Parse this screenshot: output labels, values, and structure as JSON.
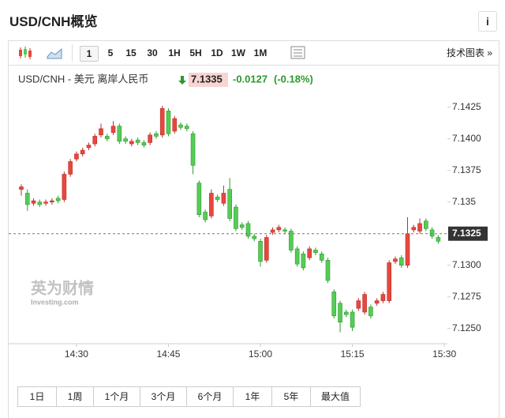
{
  "header": {
    "title": "USD/CNH概览",
    "info": "i"
  },
  "toolbar": {
    "intervals": [
      "1",
      "5",
      "15",
      "30",
      "1H",
      "5H",
      "1D",
      "1W",
      "1M"
    ],
    "selected": "1",
    "tech_chart": "技术图表 »"
  },
  "quote": {
    "name": "USD/CNH - 美元 离岸人民币",
    "price": "7.1335",
    "change": "-0.0127",
    "change_pct": "(-0.18%)"
  },
  "watermark": {
    "brand": "英为财情",
    "site": "Investing.com"
  },
  "periods": [
    "1日",
    "1周",
    "1个月",
    "3个月",
    "6个月",
    "1年",
    "5年",
    "最大值"
  ],
  "chart_data": {
    "type": "candlestick",
    "x": [
      "14:21",
      "14:22",
      "14:23",
      "14:24",
      "14:25",
      "14:26",
      "14:27",
      "14:28",
      "14:29",
      "14:30",
      "14:31",
      "14:32",
      "14:33",
      "14:34",
      "14:35",
      "14:36",
      "14:37",
      "14:38",
      "14:39",
      "14:40",
      "14:41",
      "14:42",
      "14:43",
      "14:44",
      "14:45",
      "14:46",
      "14:47",
      "14:48",
      "14:49",
      "14:50",
      "14:51",
      "14:52",
      "14:53",
      "14:54",
      "14:55",
      "14:56",
      "14:57",
      "14:58",
      "14:59",
      "15:00",
      "15:01",
      "15:02",
      "15:03",
      "15:04",
      "15:05",
      "15:06",
      "15:07",
      "15:08",
      "15:09",
      "15:10",
      "15:11",
      "15:12",
      "15:13",
      "15:14",
      "15:15",
      "15:16",
      "15:17",
      "15:18",
      "15:19",
      "15:20",
      "15:21",
      "15:22",
      "15:23",
      "15:24",
      "15:25",
      "15:26",
      "15:27",
      "15:28",
      "15:29"
    ],
    "open": [
      7.136,
      7.1357,
      7.1349,
      7.135,
      7.1349,
      7.135,
      7.1353,
      7.1352,
      7.1372,
      7.1384,
      7.1388,
      7.1393,
      7.1396,
      7.1403,
      7.1402,
      7.1405,
      7.141,
      7.14,
      7.1396,
      7.1399,
      7.1397,
      7.1397,
      7.1404,
      7.1403,
      7.1422,
      7.1406,
      7.1411,
      7.141,
      7.1404,
      7.1365,
      7.1342,
      7.1339,
      7.1354,
      7.1349,
      7.136,
      7.1346,
      7.1332,
      7.1333,
      7.1323,
      7.1319,
      7.1304,
      7.1326,
      7.1328,
      7.1328,
      7.1327,
      7.1313,
      7.1309,
      7.1306,
      7.1312,
      7.1309,
      7.1304,
      7.1279,
      7.127,
      7.1263,
      7.1263,
      7.1266,
      7.1263,
      7.1267,
      7.127,
      7.1272,
      7.1272,
      7.1303,
      7.1306,
      7.13,
      7.1328,
      7.1327,
      7.1335,
      7.1328,
      7.1322
    ],
    "high": [
      7.1364,
      7.136,
      7.1353,
      7.1352,
      7.1352,
      7.1353,
      7.1355,
      7.1374,
      7.1384,
      7.139,
      7.1393,
      7.1397,
      7.1404,
      7.1412,
      7.1404,
      7.1414,
      7.1412,
      7.1402,
      7.14,
      7.1401,
      7.1399,
      7.1405,
      7.1406,
      7.1426,
      7.1424,
      7.1418,
      7.1413,
      7.1412,
      7.1406,
      7.1367,
      7.1344,
      7.136,
      7.1356,
      7.1363,
      7.1369,
      7.1348,
      7.1334,
      7.1335,
      7.1325,
      7.1321,
      7.1324,
      7.133,
      7.1332,
      7.133,
      7.1329,
      7.1315,
      7.1311,
      7.1315,
      7.1314,
      7.1311,
      7.1306,
      7.1281,
      7.1272,
      7.1265,
      7.1265,
      7.1274,
      7.1279,
      7.1269,
      7.1274,
      7.1279,
      7.1304,
      7.1307,
      7.1308,
      7.1338,
      7.1332,
      7.1337,
      7.1337,
      7.133,
      7.1324
    ],
    "low": [
      7.1355,
      7.1343,
      7.1347,
      7.1346,
      7.1347,
      7.1348,
      7.1349,
      7.135,
      7.137,
      7.1382,
      7.1386,
      7.1391,
      7.1394,
      7.1401,
      7.1398,
      7.1403,
      7.1396,
      7.1396,
      7.1394,
      7.1395,
      7.1393,
      7.1395,
      7.14,
      7.1401,
      7.1402,
      7.1404,
      7.1407,
      7.1406,
      7.1372,
      7.1338,
      7.1334,
      7.1337,
      7.135,
      7.1347,
      7.1335,
      7.1327,
      7.1328,
      7.1321,
      7.1319,
      7.1299,
      7.1302,
      7.1324,
      7.1326,
      7.1325,
      7.131,
      7.1299,
      7.1296,
      7.1304,
      7.1308,
      7.1302,
      7.1286,
      7.1258,
      7.1247,
      7.1259,
      7.1248,
      7.1264,
      7.1261,
      7.1258,
      7.1268,
      7.127,
      7.127,
      7.1301,
      7.1298,
      7.1298,
      7.1326,
      7.1325,
      7.1327,
      7.1321,
      7.1317
    ],
    "close": [
      7.1362,
      7.1348,
      7.1351,
      7.1348,
      7.135,
      7.1351,
      7.1351,
      7.1372,
      7.1382,
      7.1388,
      7.1391,
      7.1395,
      7.1402,
      7.1408,
      7.14,
      7.141,
      7.1398,
      7.1398,
      7.1398,
      7.1397,
      7.1395,
      7.1403,
      7.1402,
      7.1424,
      7.1404,
      7.1416,
      7.1409,
      7.1408,
      7.1379,
      7.134,
      7.1336,
      7.1357,
      7.1352,
      7.1357,
      7.1337,
      7.1329,
      7.133,
      7.1323,
      7.1321,
      7.1303,
      7.1322,
      7.1328,
      7.133,
      7.1327,
      7.1312,
      7.1301,
      7.1298,
      7.1313,
      7.131,
      7.1304,
      7.1288,
      7.126,
      7.1255,
      7.1261,
      7.1251,
      7.1272,
      7.1277,
      7.126,
      7.1272,
      7.1277,
      7.1302,
      7.1305,
      7.13,
      7.1325,
      7.133,
      7.1333,
      7.1329,
      7.1323,
      7.1319
    ],
    "up_color": "#e8473f",
    "down_color": "#55cc55",
    "current": 7.1325,
    "ylim": [
      7.1238,
      7.1436
    ],
    "yticks": [
      {
        "value": 7.125,
        "label": "7.1250"
      },
      7.1275,
      {
        "value": 7.13,
        "label": "7.1300"
      },
      7.135,
      7.1375,
      {
        "value": 7.14,
        "label": "7.1400"
      },
      7.1425
    ],
    "xticks": [
      "14:30",
      "14:45",
      "15:00",
      "15:15",
      "15:30"
    ]
  }
}
